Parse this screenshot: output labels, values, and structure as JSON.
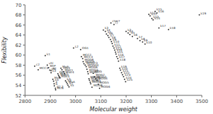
{
  "chart_data": {
    "type": "scatter",
    "xlabel": "Molecular weight",
    "ylabel": "Flexibility",
    "xlim": [
      2800,
      3500
    ],
    "ylim": [
      52,
      70
    ],
    "xticks": [
      2800,
      2900,
      3000,
      3100,
      3200,
      3300,
      3400,
      3500
    ],
    "yticks": [
      52,
      54,
      56,
      58,
      60,
      62,
      64,
      66,
      68,
      70
    ],
    "color": "#333333",
    "x": [
      2838,
      2852,
      2880,
      2888,
      2893,
      2898,
      2903,
      2903,
      2910,
      2913,
      2915,
      2916,
      2920,
      2921,
      2930,
      2933,
      2935,
      2938,
      2942,
      2946,
      2952,
      2956,
      2960,
      2964,
      2967,
      2970,
      2974,
      2992,
      3020,
      3023,
      3028,
      3030,
      3033,
      3038,
      3042,
      3045,
      3048,
      3050,
      3053,
      3055,
      3058,
      3060,
      3065,
      3070,
      3074,
      3080,
      3085,
      3090,
      3095,
      3110,
      3118,
      3122,
      3128,
      3132,
      3138,
      3142,
      3145,
      3148,
      3152,
      3155,
      3158,
      3160,
      3163,
      3167,
      3170,
      3175,
      3178,
      3182,
      3186,
      3190,
      3194,
      3198,
      3140,
      3152,
      3200,
      3208,
      3215,
      3225,
      3245,
      3255,
      3265,
      3275,
      3290,
      3295,
      3302,
      3307,
      3315,
      3322,
      3330,
      3368,
      3490
    ],
    "values": [
      57.8,
      57.1,
      59.9,
      58.0,
      57.5,
      57.0,
      56.9,
      56.5,
      55.2,
      54.8,
      54.3,
      53.9,
      53.4,
      53.1,
      56.3,
      56.0,
      55.7,
      55.5,
      57.4,
      57.1,
      56.7,
      56.3,
      54.9,
      54.6,
      54.3,
      54.0,
      53.7,
      61.4,
      61.1,
      59.7,
      59.3,
      58.7,
      58.3,
      58.0,
      57.7,
      57.2,
      56.7,
      56.3,
      55.3,
      55.0,
      54.6,
      54.3,
      53.6,
      56.4,
      55.7,
      55.3,
      55.0,
      54.2,
      53.4,
      65.0,
      64.7,
      64.2,
      63.9,
      63.5,
      63.1,
      62.7,
      62.3,
      61.8,
      61.4,
      61.0,
      60.6,
      60.2,
      59.7,
      59.3,
      58.8,
      57.4,
      57.0,
      56.5,
      56.1,
      55.7,
      55.2,
      54.7,
      66.4,
      66.1,
      64.7,
      64.4,
      64.1,
      63.7,
      63.3,
      62.9,
      62.6,
      62.2,
      68.1,
      67.8,
      67.3,
      67.0,
      68.7,
      68.4,
      65.4,
      65.1,
      68.0
    ],
    "labels": [
      "c2",
      "MCC3",
      "k1",
      "vhl",
      "MtP",
      "vhr",
      "TC",
      "k3",
      "MxB",
      "k4",
      "a",
      "b",
      "d2.3",
      "McN",
      "OCC",
      "McL1",
      "MaE2",
      "MaE3",
      "MxA",
      "OG3",
      "MaE1",
      "MaE4",
      "k3",
      "k4",
      "MxA",
      "k2",
      "k5",
      "L2",
      "OG1",
      "MCC2",
      "MCC3",
      "MOG8",
      "MOG9",
      "MOG23",
      "MOG44",
      "MOG9",
      "MOG6",
      "MOG7",
      "MOG3",
      "MOG4",
      "MOG5",
      "MOG1",
      "MOG8",
      "MOG",
      "MOG2",
      "MOG3",
      "MOG4",
      "MOG5",
      "MOG6",
      "k3",
      "k4",
      "k5",
      "k6",
      "k7",
      "k8",
      "k9",
      "k10",
      "k11",
      "k12",
      "k13",
      "k14",
      "k15",
      "k16",
      "k17",
      "k18",
      "k19",
      "k20",
      "k21",
      "k22",
      "k23",
      "k24",
      "k25",
      "cter7",
      "[]",
      "k3",
      "k4",
      "k5",
      "k6",
      "k7",
      "k8",
      "k9",
      "k10",
      "k11",
      "k12",
      "k13",
      "k14",
      "k15",
      "k16",
      "k17",
      "k18",
      "k19"
    ]
  }
}
